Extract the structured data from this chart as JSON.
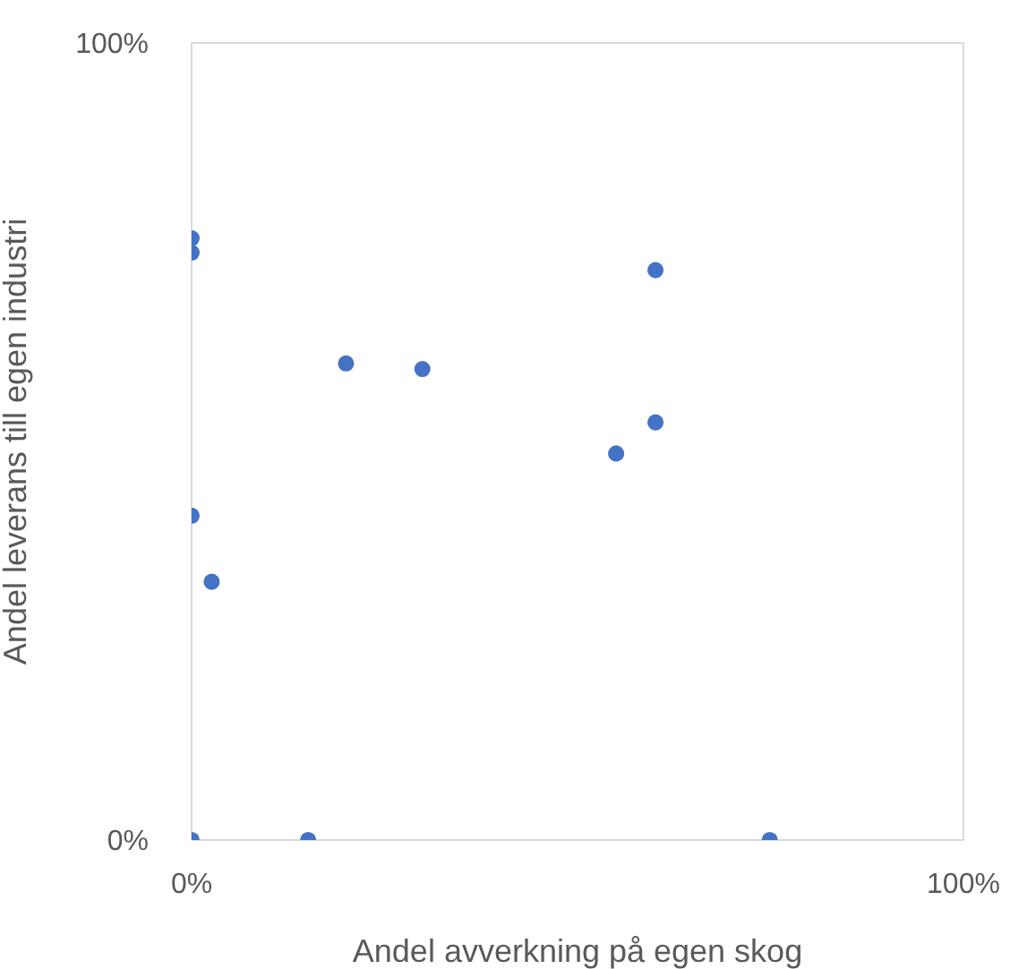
{
  "chart_data": {
    "type": "scatter",
    "xlabel": "Andel avverkning på egen skog",
    "ylabel": "Andel leverans till egen industri",
    "x": [
      0,
      0,
      60.1,
      20,
      29.9,
      60.1,
      55,
      0,
      2.6,
      0,
      15.1,
      74.9
    ],
    "series": [
      {
        "color": "#4472c4",
        "values": [
          75.5,
          73.7,
          71.5,
          59.8,
          59.1,
          52.4,
          48.5,
          40.7,
          32.4,
          0,
          0,
          0
        ]
      }
    ],
    "xlim": [
      0,
      100
    ],
    "ylim": [
      0,
      100
    ],
    "xticks": [
      {
        "value": 0,
        "label": "0%"
      },
      {
        "value": 100,
        "label": "100%"
      }
    ],
    "yticks": [
      {
        "value": 0,
        "label": "0%"
      },
      {
        "value": 100,
        "label": "100%"
      }
    ],
    "marker": "circle"
  }
}
